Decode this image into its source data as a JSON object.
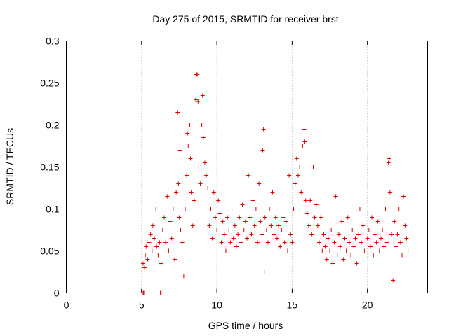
{
  "chart_data": {
    "type": "scatter",
    "title": "Day 275 of 2015, SRMTID for receiver brst",
    "xlabel": "GPS time / hours",
    "ylabel": "SRMTID / TECUs",
    "xlim": [
      0,
      24
    ],
    "ylim": [
      0,
      0.3
    ],
    "xticks": [
      0,
      5,
      10,
      15,
      20
    ],
    "xtick_labels": [
      "0",
      "5",
      "10",
      "15",
      "20"
    ],
    "yticks": [
      0,
      0.05,
      0.1,
      0.15,
      0.2,
      0.25,
      0.3
    ],
    "ytick_labels": [
      "0",
      "0.05",
      "0.1",
      "0.15",
      "0.2",
      "0.25",
      "0.3"
    ],
    "grid": true,
    "marker": "plus",
    "color": "#e00000",
    "series": [
      {
        "points": [
          [
            5.1,
            0.0
          ],
          [
            5.15,
            0.0
          ],
          [
            6.25,
            0.0
          ],
          [
            6.3,
            0.0
          ],
          [
            5.1,
            0.035
          ],
          [
            5.2,
            0.03
          ],
          [
            5.25,
            0.045
          ],
          [
            5.3,
            0.055
          ],
          [
            5.4,
            0.04
          ],
          [
            5.5,
            0.06
          ],
          [
            5.6,
            0.07
          ],
          [
            5.7,
            0.05
          ],
          [
            5.75,
            0.08
          ],
          [
            5.85,
            0.065
          ],
          [
            5.95,
            0.1
          ],
          [
            6.0,
            0.055
          ],
          [
            6.1,
            0.045
          ],
          [
            6.2,
            0.06
          ],
          [
            6.3,
            0.035
          ],
          [
            6.4,
            0.075
          ],
          [
            6.5,
            0.09
          ],
          [
            6.6,
            0.06
          ],
          [
            6.7,
            0.115
          ],
          [
            6.8,
            0.05
          ],
          [
            6.9,
            0.085
          ],
          [
            7.0,
            0.065
          ],
          [
            7.1,
            0.1
          ],
          [
            7.2,
            0.04
          ],
          [
            7.3,
            0.12
          ],
          [
            7.4,
            0.215
          ],
          [
            7.45,
            0.13
          ],
          [
            7.5,
            0.09
          ],
          [
            7.55,
            0.17
          ],
          [
            7.6,
            0.075
          ],
          [
            7.7,
            0.06
          ],
          [
            7.8,
            0.02
          ],
          [
            7.9,
            0.1
          ],
          [
            8.0,
            0.14
          ],
          [
            8.05,
            0.19
          ],
          [
            8.1,
            0.175
          ],
          [
            8.2,
            0.2
          ],
          [
            8.25,
            0.16
          ],
          [
            8.3,
            0.12
          ],
          [
            8.4,
            0.08
          ],
          [
            8.5,
            0.11
          ],
          [
            8.6,
            0.23
          ],
          [
            8.65,
            0.26
          ],
          [
            8.7,
            0.26
          ],
          [
            8.75,
            0.228
          ],
          [
            8.8,
            0.15
          ],
          [
            8.9,
            0.13
          ],
          [
            9.0,
            0.2
          ],
          [
            9.05,
            0.235
          ],
          [
            9.1,
            0.185
          ],
          [
            9.2,
            0.155
          ],
          [
            9.3,
            0.14
          ],
          [
            9.4,
            0.125
          ],
          [
            9.5,
            0.08
          ],
          [
            9.6,
            0.1
          ],
          [
            9.7,
            0.065
          ],
          [
            9.8,
            0.12
          ],
          [
            9.9,
            0.09
          ],
          [
            10.0,
            0.075
          ],
          [
            10.1,
            0.11
          ],
          [
            10.2,
            0.095
          ],
          [
            10.3,
            0.06
          ],
          [
            10.4,
            0.085
          ],
          [
            10.5,
            0.07
          ],
          [
            10.6,
            0.05
          ],
          [
            10.7,
            0.09
          ],
          [
            10.8,
            0.075
          ],
          [
            10.9,
            0.06
          ],
          [
            11.0,
            0.1
          ],
          [
            11.1,
            0.065
          ],
          [
            11.2,
            0.08
          ],
          [
            11.3,
            0.055
          ],
          [
            11.4,
            0.07
          ],
          [
            11.5,
            0.09
          ],
          [
            11.6,
            0.06
          ],
          [
            11.7,
            0.105
          ],
          [
            11.8,
            0.075
          ],
          [
            11.9,
            0.085
          ],
          [
            12.0,
            0.065
          ],
          [
            12.1,
            0.14
          ],
          [
            12.2,
            0.09
          ],
          [
            12.3,
            0.07
          ],
          [
            12.4,
            0.11
          ],
          [
            12.5,
            0.08
          ],
          [
            12.6,
            0.1
          ],
          [
            12.7,
            0.06
          ],
          [
            12.8,
            0.13
          ],
          [
            12.9,
            0.085
          ],
          [
            13.0,
            0.07
          ],
          [
            13.05,
            0.17
          ],
          [
            13.1,
            0.195
          ],
          [
            13.15,
            0.025
          ],
          [
            13.2,
            0.09
          ],
          [
            13.3,
            0.075
          ],
          [
            13.4,
            0.06
          ],
          [
            13.5,
            0.1
          ],
          [
            13.6,
            0.08
          ],
          [
            13.7,
            0.12
          ],
          [
            13.8,
            0.07
          ],
          [
            13.9,
            0.09
          ],
          [
            14.0,
            0.065
          ],
          [
            14.1,
            0.08
          ],
          [
            14.2,
            0.055
          ],
          [
            14.3,
            0.075
          ],
          [
            14.4,
            0.09
          ],
          [
            14.5,
            0.06
          ],
          [
            14.6,
            0.085
          ],
          [
            14.7,
            0.05
          ],
          [
            14.8,
            0.14
          ],
          [
            14.9,
            0.07
          ],
          [
            15.0,
            0.06
          ],
          [
            15.1,
            0.1
          ],
          [
            15.2,
            0.13
          ],
          [
            15.3,
            0.16
          ],
          [
            15.4,
            0.14
          ],
          [
            15.5,
            0.15
          ],
          [
            15.6,
            0.12
          ],
          [
            15.7,
            0.175
          ],
          [
            15.8,
            0.195
          ],
          [
            15.85,
            0.18
          ],
          [
            15.9,
            0.11
          ],
          [
            16.0,
            0.095
          ],
          [
            16.1,
            0.08
          ],
          [
            16.2,
            0.11
          ],
          [
            16.3,
            0.07
          ],
          [
            16.4,
            0.15
          ],
          [
            16.5,
            0.09
          ],
          [
            16.6,
            0.105
          ],
          [
            16.7,
            0.08
          ],
          [
            16.8,
            0.06
          ],
          [
            16.9,
            0.09
          ],
          [
            17.0,
            0.05
          ],
          [
            17.1,
            0.07
          ],
          [
            17.2,
            0.055
          ],
          [
            17.3,
            0.04
          ],
          [
            17.4,
            0.065
          ],
          [
            17.5,
            0.05
          ],
          [
            17.6,
            0.075
          ],
          [
            17.7,
            0.035
          ],
          [
            17.8,
            0.06
          ],
          [
            17.9,
            0.115
          ],
          [
            18.0,
            0.045
          ],
          [
            18.1,
            0.07
          ],
          [
            18.2,
            0.055
          ],
          [
            18.3,
            0.085
          ],
          [
            18.4,
            0.04
          ],
          [
            18.5,
            0.065
          ],
          [
            18.6,
            0.05
          ],
          [
            18.7,
            0.09
          ],
          [
            18.8,
            0.06
          ],
          [
            18.9,
            0.045
          ],
          [
            19.0,
            0.075
          ],
          [
            19.1,
            0.055
          ],
          [
            19.2,
            0.065
          ],
          [
            19.3,
            0.035
          ],
          [
            19.4,
            0.07
          ],
          [
            19.5,
            0.1
          ],
          [
            19.6,
            0.06
          ],
          [
            19.7,
            0.08
          ],
          [
            19.8,
            0.05
          ],
          [
            19.9,
            0.02
          ],
          [
            20.0,
            0.065
          ],
          [
            20.1,
            0.075
          ],
          [
            20.2,
            0.055
          ],
          [
            20.3,
            0.09
          ],
          [
            20.4,
            0.045
          ],
          [
            20.5,
            0.07
          ],
          [
            20.6,
            0.06
          ],
          [
            20.7,
            0.085
          ],
          [
            20.8,
            0.05
          ],
          [
            20.9,
            0.065
          ],
          [
            21.0,
            0.075
          ],
          [
            21.1,
            0.055
          ],
          [
            21.2,
            0.1
          ],
          [
            21.3,
            0.06
          ],
          [
            21.4,
            0.155
          ],
          [
            21.45,
            0.16
          ],
          [
            21.5,
            0.12
          ],
          [
            21.6,
            0.07
          ],
          [
            21.7,
            0.015
          ],
          [
            21.8,
            0.085
          ],
          [
            21.9,
            0.055
          ],
          [
            22.0,
            0.07
          ],
          [
            22.1,
            0.1
          ],
          [
            22.2,
            0.06
          ],
          [
            22.3,
            0.045
          ],
          [
            22.4,
            0.115
          ],
          [
            22.5,
            0.08
          ],
          [
            22.6,
            0.065
          ],
          [
            22.7,
            0.05
          ]
        ]
      }
    ]
  }
}
